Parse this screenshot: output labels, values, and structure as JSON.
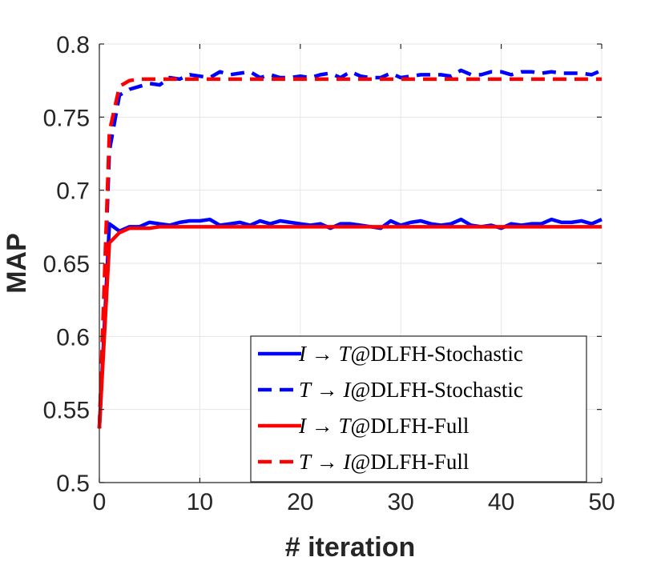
{
  "chart_data": {
    "type": "line",
    "title": "",
    "xlabel": "# iteration",
    "ylabel": "MAP",
    "xlim": [
      0,
      50
    ],
    "ylim": [
      0.5,
      0.8
    ],
    "xticks": [
      0,
      10,
      20,
      30,
      40,
      50
    ],
    "xtick_labels": [
      "0",
      "10",
      "20",
      "30",
      "40",
      "50"
    ],
    "yticks": [
      0.5,
      0.55,
      0.6,
      0.65,
      0.7,
      0.75,
      0.8
    ],
    "ytick_labels": [
      "0.5",
      "0.55",
      "0.6",
      "0.65",
      "0.7",
      "0.75",
      "0.8"
    ],
    "grid": true,
    "legend_position": "bottom-right",
    "x": [
      0,
      1,
      2,
      3,
      4,
      5,
      6,
      7,
      8,
      9,
      10,
      11,
      12,
      13,
      14,
      15,
      16,
      17,
      18,
      19,
      20,
      21,
      22,
      23,
      24,
      25,
      26,
      27,
      28,
      29,
      30,
      31,
      32,
      33,
      34,
      35,
      36,
      37,
      38,
      39,
      40,
      41,
      42,
      43,
      44,
      45,
      46,
      47,
      48,
      49,
      50
    ],
    "series": [
      {
        "name": "I→T@DLFH-Stochastic",
        "legend_math_a": "I",
        "legend_arrow": "→",
        "legend_math_b": "T",
        "legend_suffix": "@DLFH-Stochastic",
        "color": "#0000ff",
        "dash": "solid",
        "values": [
          0.537,
          0.677,
          0.672,
          0.675,
          0.675,
          0.678,
          0.677,
          0.676,
          0.678,
          0.679,
          0.679,
          0.68,
          0.676,
          0.677,
          0.678,
          0.676,
          0.679,
          0.677,
          0.679,
          0.678,
          0.677,
          0.676,
          0.677,
          0.674,
          0.677,
          0.677,
          0.676,
          0.675,
          0.674,
          0.679,
          0.676,
          0.678,
          0.679,
          0.677,
          0.676,
          0.677,
          0.68,
          0.676,
          0.675,
          0.676,
          0.674,
          0.677,
          0.676,
          0.677,
          0.677,
          0.68,
          0.678,
          0.678,
          0.679,
          0.677,
          0.68
        ]
      },
      {
        "name": "T→I@DLFH-Stochastic",
        "legend_math_a": "T",
        "legend_arrow": "→",
        "legend_math_b": "I",
        "legend_suffix": "@DLFH-Stochastic",
        "color": "#0000ff",
        "dash": "dashed",
        "values": [
          0.537,
          0.727,
          0.765,
          0.769,
          0.771,
          0.773,
          0.772,
          0.777,
          0.776,
          0.779,
          0.778,
          0.777,
          0.781,
          0.779,
          0.78,
          0.781,
          0.777,
          0.779,
          0.777,
          0.777,
          0.778,
          0.777,
          0.779,
          0.78,
          0.777,
          0.781,
          0.778,
          0.777,
          0.777,
          0.78,
          0.777,
          0.778,
          0.779,
          0.779,
          0.779,
          0.778,
          0.782,
          0.779,
          0.779,
          0.781,
          0.781,
          0.779,
          0.781,
          0.781,
          0.78,
          0.781,
          0.78,
          0.78,
          0.78,
          0.779,
          0.782
        ]
      },
      {
        "name": "I→T@DLFH-Full",
        "legend_math_a": "I",
        "legend_arrow": "→",
        "legend_math_b": "T",
        "legend_suffix": "@DLFH-Full",
        "color": "#ff0000",
        "dash": "solid",
        "values": [
          0.537,
          0.664,
          0.671,
          0.674,
          0.674,
          0.674,
          0.675,
          0.675,
          0.675,
          0.675,
          0.675,
          0.675,
          0.675,
          0.675,
          0.675,
          0.675,
          0.675,
          0.675,
          0.675,
          0.675,
          0.675,
          0.675,
          0.675,
          0.675,
          0.675,
          0.675,
          0.675,
          0.675,
          0.675,
          0.675,
          0.675,
          0.675,
          0.675,
          0.675,
          0.675,
          0.675,
          0.675,
          0.675,
          0.675,
          0.675,
          0.675,
          0.675,
          0.675,
          0.675,
          0.675,
          0.675,
          0.675,
          0.675,
          0.675,
          0.675,
          0.675
        ]
      },
      {
        "name": "T→I@DLFH-Full",
        "legend_math_a": "T",
        "legend_arrow": "→",
        "legend_math_b": "I",
        "legend_suffix": "@DLFH-Full",
        "color": "#ff0000",
        "dash": "dashed",
        "values": [
          0.537,
          0.74,
          0.771,
          0.775,
          0.776,
          0.776,
          0.776,
          0.776,
          0.776,
          0.776,
          0.776,
          0.776,
          0.776,
          0.776,
          0.776,
          0.776,
          0.776,
          0.776,
          0.776,
          0.776,
          0.776,
          0.776,
          0.776,
          0.776,
          0.776,
          0.776,
          0.776,
          0.776,
          0.776,
          0.776,
          0.776,
          0.776,
          0.776,
          0.776,
          0.776,
          0.776,
          0.776,
          0.776,
          0.776,
          0.776,
          0.776,
          0.776,
          0.776,
          0.776,
          0.776,
          0.776,
          0.776,
          0.776,
          0.776,
          0.776,
          0.776
        ]
      }
    ]
  }
}
